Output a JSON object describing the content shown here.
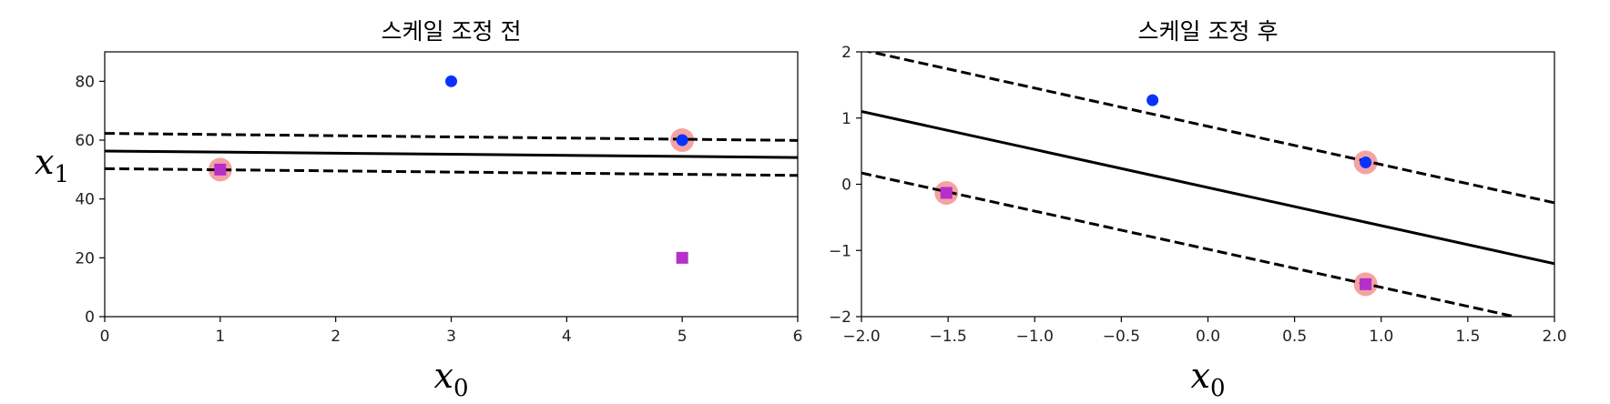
{
  "chart_data": [
    {
      "type": "scatter",
      "title": "스케일 조정 전",
      "xlabel": "x0",
      "xlabel_main": "x",
      "xlabel_sub": "0",
      "ylabel": "x1",
      "ylabel_main": "x",
      "ylabel_sub": "1",
      "xlim": [
        0,
        6
      ],
      "ylim": [
        0,
        90
      ],
      "xticks": [
        0,
        1,
        2,
        3,
        4,
        5,
        6
      ],
      "xtick_labels": [
        "0",
        "1",
        "2",
        "3",
        "4",
        "5",
        "6"
      ],
      "yticks": [
        0,
        20,
        40,
        60,
        80
      ],
      "ytick_labels": [
        "0",
        "20",
        "40",
        "60",
        "80"
      ],
      "grid": false,
      "series": [
        {
          "marker": "circle",
          "color": "#0a32ff",
          "points": [
            {
              "x": 3,
              "y": 80
            },
            {
              "x": 5,
              "y": 60
            }
          ]
        },
        {
          "marker": "square",
          "color": "#b52fc8",
          "points": [
            {
              "x": 5,
              "y": 20
            },
            {
              "x": 1,
              "y": 50
            }
          ]
        }
      ],
      "support_vectors": [
        {
          "x": 1,
          "y": 50
        },
        {
          "x": 5,
          "y": 60
        }
      ],
      "support_vector_color": "#f4a3a3",
      "lines": [
        {
          "style": "solid",
          "points": [
            {
              "x": 0,
              "y": 56.3
            },
            {
              "x": 6,
              "y": 54.1
            }
          ]
        },
        {
          "style": "dashed",
          "points": [
            {
              "x": 0,
              "y": 62.3
            },
            {
              "x": 6,
              "y": 59.9
            }
          ]
        },
        {
          "style": "dashed",
          "points": [
            {
              "x": 0,
              "y": 50.3
            },
            {
              "x": 6,
              "y": 48.0
            }
          ]
        }
      ]
    },
    {
      "type": "scatter",
      "title": "스케일 조정 후",
      "xlabel": "x0",
      "xlabel_main": "x",
      "xlabel_sub": "0",
      "ylabel": "",
      "xlim": [
        -2,
        2
      ],
      "ylim": [
        -2,
        2
      ],
      "xticks": [
        -2,
        -1.5,
        -1,
        -0.5,
        0,
        0.5,
        1,
        1.5,
        2
      ],
      "xtick_labels": [
        "−2.0",
        "−1.5",
        "−1.0",
        "−0.5",
        "0.0",
        "0.5",
        "1.0",
        "1.5",
        "2.0"
      ],
      "yticks": [
        -2,
        -1,
        0,
        1,
        2
      ],
      "ytick_labels": [
        "−2",
        "−1",
        "0",
        "1",
        "2"
      ],
      "grid": false,
      "series": [
        {
          "marker": "circle",
          "color": "#0a32ff",
          "points": [
            {
              "x": -0.32,
              "y": 1.27
            },
            {
              "x": 0.91,
              "y": 0.33
            }
          ]
        },
        {
          "marker": "square",
          "color": "#b52fc8",
          "points": [
            {
              "x": -1.51,
              "y": -0.13
            },
            {
              "x": 0.91,
              "y": -1.51
            }
          ]
        }
      ],
      "support_vectors": [
        {
          "x": -1.51,
          "y": -0.13
        },
        {
          "x": 0.91,
          "y": 0.33
        },
        {
          "x": 0.91,
          "y": -1.51
        }
      ],
      "support_vector_color": "#f4a3a3",
      "lines": [
        {
          "style": "solid",
          "points": [
            {
              "x": -2,
              "y": 1.1
            },
            {
              "x": 2,
              "y": -1.2
            }
          ]
        },
        {
          "style": "dashed",
          "points": [
            {
              "x": -2,
              "y": 2.03
            },
            {
              "x": 2,
              "y": -0.28
            }
          ]
        },
        {
          "style": "dashed",
          "points": [
            {
              "x": -2,
              "y": 0.17
            },
            {
              "x": 1.77,
              "y": -2.0
            }
          ]
        }
      ]
    }
  ]
}
